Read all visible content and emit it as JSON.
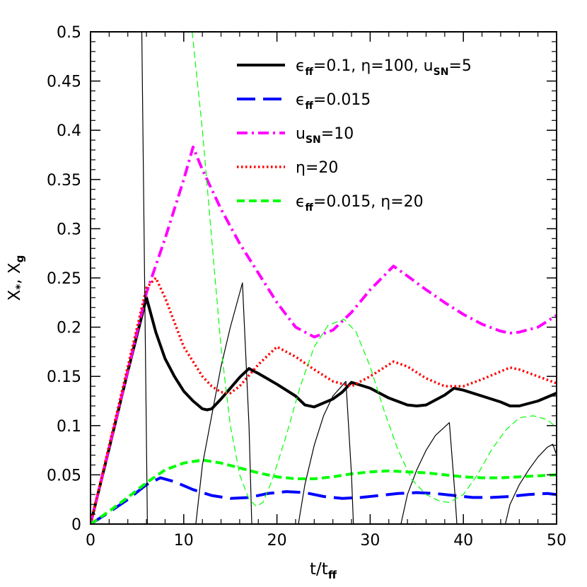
{
  "chart_data": {
    "type": "line",
    "xlabel": "t/t",
    "xlabel_sub": "ff",
    "ylabel_parts": [
      "X",
      "*",
      ", X",
      "g"
    ],
    "xlim": [
      0,
      50
    ],
    "ylim": [
      0,
      0.5
    ],
    "x_ticks": [
      0,
      10,
      20,
      30,
      40,
      50
    ],
    "x_tick_labels": [
      "0",
      "10",
      "20",
      "30",
      "40",
      "50"
    ],
    "y_ticks": [
      0,
      0.05,
      0.1,
      0.15,
      0.2,
      0.25,
      0.3,
      0.35,
      0.4,
      0.45,
      0.5
    ],
    "y_tick_labels": [
      "0",
      "0.05",
      "0.1",
      "0.15",
      "0.2",
      "0.25",
      "0.3",
      "0.35",
      "0.4",
      "0.45",
      "0.5"
    ],
    "legend_position": "top-right",
    "legend": [
      {
        "parts": [
          [
            "ϵ",
            ""
          ],
          [
            "ff",
            "sub"
          ],
          [
            "=0.1,  ",
            ""
          ],
          [
            "η",
            ""
          ],
          [
            "=100,  u",
            ""
          ],
          [
            "SN",
            "sub"
          ],
          [
            "=5",
            ""
          ]
        ],
        "color": "#000000",
        "style": "solid-thick"
      },
      {
        "parts": [
          [
            "ϵ",
            ""
          ],
          [
            "ff",
            "sub"
          ],
          [
            "=0.015",
            ""
          ]
        ],
        "color": "#0000ff",
        "style": "long-dash"
      },
      {
        "parts": [
          [
            "u",
            ""
          ],
          [
            "SN",
            "sub"
          ],
          [
            "=10",
            ""
          ]
        ],
        "color": "#ff00ff",
        "style": "dash-dot"
      },
      {
        "parts": [
          [
            "η",
            ""
          ],
          [
            "=20",
            ""
          ]
        ],
        "color": "#ff0000",
        "style": "dotted"
      },
      {
        "parts": [
          [
            "ϵ",
            ""
          ],
          [
            "ff",
            "sub"
          ],
          [
            "=0.015,  ",
            ""
          ],
          [
            "η",
            ""
          ],
          [
            "=20",
            ""
          ]
        ],
        "color": "#00ff00",
        "style": "short-dash"
      }
    ],
    "series": [
      {
        "id": "xstar_fiducial",
        "color": "#000000",
        "style": "solid-thick",
        "x": [
          0,
          2,
          4,
          6,
          7,
          8,
          9,
          10,
          11,
          12,
          12.5,
          13,
          14,
          15,
          16,
          17,
          18,
          20,
          22,
          23,
          24,
          26,
          27,
          28,
          30,
          32,
          34,
          35,
          36,
          38,
          39,
          40,
          42,
          44,
          45,
          46,
          48,
          50
        ],
        "y": [
          0,
          0.077,
          0.155,
          0.23,
          0.195,
          0.168,
          0.15,
          0.135,
          0.125,
          0.117,
          0.116,
          0.117,
          0.127,
          0.138,
          0.149,
          0.158,
          0.153,
          0.142,
          0.13,
          0.121,
          0.119,
          0.127,
          0.134,
          0.144,
          0.138,
          0.128,
          0.121,
          0.12,
          0.121,
          0.131,
          0.138,
          0.136,
          0.13,
          0.124,
          0.12,
          0.12,
          0.125,
          0.133
        ]
      },
      {
        "id": "xstar_eff0015",
        "color": "#0000ff",
        "style": "long-dash",
        "x": [
          0,
          2,
          4,
          6,
          7.5,
          9,
          11,
          13,
          15,
          17,
          19,
          21,
          23,
          25,
          27,
          29,
          31,
          33,
          35,
          37,
          39,
          41,
          43,
          45,
          47,
          49,
          50
        ],
        "y": [
          0,
          0.012,
          0.025,
          0.04,
          0.047,
          0.043,
          0.035,
          0.029,
          0.026,
          0.027,
          0.031,
          0.033,
          0.032,
          0.028,
          0.026,
          0.027,
          0.029,
          0.031,
          0.032,
          0.031,
          0.029,
          0.027,
          0.027,
          0.028,
          0.03,
          0.031,
          0.03
        ]
      },
      {
        "id": "xstar_usn10",
        "color": "#ff00ff",
        "style": "dash-dot",
        "x": [
          0,
          2,
          4,
          6,
          8,
          10,
          11,
          12,
          14,
          16,
          18,
          20,
          22,
          24,
          26,
          28,
          30,
          32.5,
          34,
          36,
          38,
          40,
          42,
          44,
          45,
          46,
          48,
          50
        ],
        "y": [
          0,
          0.078,
          0.156,
          0.235,
          0.29,
          0.35,
          0.383,
          0.36,
          0.32,
          0.285,
          0.255,
          0.225,
          0.2,
          0.19,
          0.197,
          0.215,
          0.238,
          0.262,
          0.252,
          0.238,
          0.225,
          0.213,
          0.203,
          0.196,
          0.194,
          0.195,
          0.2,
          0.212
        ]
      },
      {
        "id": "xstar_eta20",
        "color": "#ff0000",
        "style": "dotted",
        "x": [
          0,
          2,
          4,
          6,
          7,
          8,
          9,
          10,
          11,
          12,
          13,
          14,
          15,
          16,
          18,
          20,
          22,
          24,
          26,
          28,
          30,
          32.5,
          34,
          36,
          38,
          40,
          42,
          44,
          45,
          46,
          48,
          50
        ],
        "y": [
          0,
          0.08,
          0.16,
          0.24,
          0.25,
          0.23,
          0.205,
          0.18,
          0.165,
          0.15,
          0.14,
          0.134,
          0.133,
          0.14,
          0.162,
          0.18,
          0.17,
          0.157,
          0.145,
          0.14,
          0.15,
          0.165,
          0.16,
          0.148,
          0.14,
          0.14,
          0.147,
          0.155,
          0.159,
          0.157,
          0.15,
          0.143
        ]
      },
      {
        "id": "xstar_eff0015_eta20",
        "color": "#00ff00",
        "style": "short-dash",
        "x": [
          0,
          2,
          4,
          6,
          8,
          10,
          12,
          14,
          16,
          18,
          20,
          22,
          24,
          26,
          28,
          30,
          32,
          34,
          36,
          38,
          40,
          42,
          44,
          46,
          48,
          50
        ],
        "y": [
          0,
          0.013,
          0.027,
          0.042,
          0.055,
          0.062,
          0.065,
          0.062,
          0.057,
          0.052,
          0.048,
          0.046,
          0.046,
          0.048,
          0.051,
          0.053,
          0.054,
          0.053,
          0.052,
          0.05,
          0.048,
          0.047,
          0.047,
          0.048,
          0.049,
          0.05
        ]
      },
      {
        "id": "xg_fiducial_seg1",
        "color": "#000000",
        "style": "thin",
        "x": [
          5.5,
          6.1
        ],
        "y": [
          0.5,
          0
        ]
      },
      {
        "id": "xg_fiducial_seg2",
        "color": "#000000",
        "style": "thin",
        "x": [
          11.3,
          12,
          13,
          14,
          15,
          16.3,
          17.0,
          17.3
        ],
        "y": [
          0,
          0.06,
          0.11,
          0.16,
          0.2,
          0.245,
          0.1,
          0
        ]
      },
      {
        "id": "xg_fiducial_seg3",
        "color": "#000000",
        "style": "thin",
        "x": [
          22.3,
          23,
          24,
          25,
          26,
          27.4,
          28.0,
          28.2
        ],
        "y": [
          0,
          0.04,
          0.08,
          0.11,
          0.13,
          0.145,
          0.05,
          0
        ]
      },
      {
        "id": "xg_fiducial_seg4",
        "color": "#000000",
        "style": "thin",
        "x": [
          33.3,
          34,
          35,
          36,
          37,
          38.5,
          39.1,
          39.3
        ],
        "y": [
          0,
          0.03,
          0.055,
          0.075,
          0.09,
          0.103,
          0.03,
          0
        ]
      },
      {
        "id": "xg_fiducial_seg5",
        "color": "#000000",
        "style": "thin",
        "x": [
          44.5,
          45,
          46,
          47,
          48,
          49,
          49.6,
          50
        ],
        "y": [
          0,
          0.02,
          0.04,
          0.055,
          0.068,
          0.078,
          0.081,
          0.07
        ]
      },
      {
        "id": "xg_eff0015_eta20",
        "color": "#00ff00",
        "style": "thin-dash",
        "x": [
          10.9,
          12,
          13,
          14,
          15,
          16,
          17,
          17.8,
          18.5,
          19.5,
          21,
          22.5,
          24,
          25.5,
          27.2,
          28.5,
          30,
          31.5,
          33,
          34.5,
          36,
          37.5,
          38.5,
          40,
          41.5,
          43,
          44.5,
          46,
          47.5,
          49,
          50
        ],
        "y": [
          0.5,
          0.4,
          0.29,
          0.18,
          0.1,
          0.05,
          0.025,
          0.018,
          0.022,
          0.045,
          0.09,
          0.14,
          0.18,
          0.202,
          0.208,
          0.195,
          0.16,
          0.115,
          0.075,
          0.045,
          0.03,
          0.023,
          0.022,
          0.03,
          0.05,
          0.075,
          0.095,
          0.108,
          0.11,
          0.106,
          0.098
        ]
      }
    ]
  }
}
